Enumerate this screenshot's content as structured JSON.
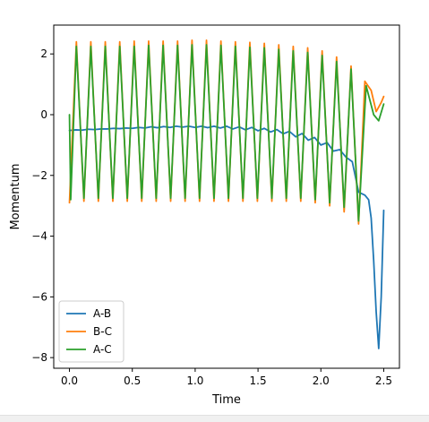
{
  "chart_data": {
    "type": "line",
    "title": "",
    "xlabel": "Time",
    "ylabel": "Momentum",
    "xlim": [
      -0.125,
      2.625
    ],
    "ylim": [
      -8.35,
      2.95
    ],
    "xticks": [
      0.0,
      0.5,
      1.0,
      1.5,
      2.0,
      2.5
    ],
    "xtick_labels": [
      "0.0",
      "0.5",
      "1.0",
      "1.5",
      "2.0",
      "2.5"
    ],
    "yticks": [
      -8,
      -6,
      -4,
      -2,
      0,
      2
    ],
    "ytick_labels": [
      "−8",
      "−6",
      "−4",
      "−2",
      "0",
      "2"
    ],
    "grid": false,
    "legend_position": "lower-left",
    "series": [
      {
        "name": "A-B",
        "color": "#1f77b4",
        "x": [
          0.0,
          0.05,
          0.1,
          0.15,
          0.2,
          0.25,
          0.3,
          0.35,
          0.4,
          0.45,
          0.5,
          0.55,
          0.6,
          0.65,
          0.7,
          0.75,
          0.8,
          0.85,
          0.9,
          0.95,
          1.0,
          1.05,
          1.1,
          1.15,
          1.2,
          1.25,
          1.3,
          1.35,
          1.4,
          1.45,
          1.5,
          1.55,
          1.6,
          1.65,
          1.7,
          1.75,
          1.8,
          1.85,
          1.9,
          1.95,
          2.0,
          2.05,
          2.1,
          2.15,
          2.2,
          2.25,
          2.3,
          2.35,
          2.38,
          2.4,
          2.42,
          2.44,
          2.46,
          2.48,
          2.5
        ],
        "y": [
          -0.52,
          -0.5,
          -0.51,
          -0.48,
          -0.49,
          -0.47,
          -0.47,
          -0.45,
          -0.46,
          -0.44,
          -0.45,
          -0.42,
          -0.44,
          -0.4,
          -0.43,
          -0.39,
          -0.42,
          -0.38,
          -0.41,
          -0.38,
          -0.42,
          -0.38,
          -0.43,
          -0.38,
          -0.44,
          -0.38,
          -0.47,
          -0.4,
          -0.5,
          -0.42,
          -0.53,
          -0.45,
          -0.57,
          -0.49,
          -0.63,
          -0.55,
          -0.73,
          -0.62,
          -0.84,
          -0.75,
          -1.0,
          -0.92,
          -1.2,
          -1.15,
          -1.4,
          -1.55,
          -2.55,
          -2.65,
          -2.8,
          -3.4,
          -4.8,
          -6.5,
          -7.7,
          -6.0,
          -3.15
        ]
      },
      {
        "name": "B-C",
        "color": "#ff7f0e",
        "x": [
          0.0,
          0.055,
          0.115,
          0.17,
          0.23,
          0.285,
          0.345,
          0.4,
          0.46,
          0.515,
          0.575,
          0.63,
          0.69,
          0.745,
          0.805,
          0.86,
          0.92,
          0.975,
          1.035,
          1.09,
          1.15,
          1.205,
          1.265,
          1.32,
          1.38,
          1.435,
          1.495,
          1.55,
          1.61,
          1.665,
          1.725,
          1.78,
          1.84,
          1.895,
          1.955,
          2.01,
          2.07,
          2.125,
          2.185,
          2.24,
          2.3,
          2.35,
          2.4,
          2.44,
          2.48,
          2.5
        ],
        "y": [
          -2.9,
          2.4,
          -2.85,
          2.4,
          -2.85,
          2.4,
          -2.85,
          2.4,
          -2.85,
          2.42,
          -2.85,
          2.42,
          -2.85,
          2.42,
          -2.85,
          2.42,
          -2.85,
          2.45,
          -2.85,
          2.45,
          -2.85,
          2.42,
          -2.85,
          2.4,
          -2.85,
          2.38,
          -2.85,
          2.35,
          -2.85,
          2.3,
          -2.85,
          2.25,
          -2.85,
          2.2,
          -2.9,
          2.1,
          -3.0,
          1.9,
          -3.2,
          1.6,
          -3.6,
          1.1,
          0.8,
          0.1,
          0.4,
          0.6
        ]
      },
      {
        "name": "A-C",
        "color": "#2ca02c",
        "x": [
          0.0,
          0.01,
          0.055,
          0.115,
          0.17,
          0.23,
          0.285,
          0.345,
          0.4,
          0.46,
          0.515,
          0.575,
          0.63,
          0.69,
          0.745,
          0.805,
          0.86,
          0.92,
          0.975,
          1.035,
          1.09,
          1.15,
          1.205,
          1.265,
          1.32,
          1.38,
          1.435,
          1.495,
          1.55,
          1.61,
          1.665,
          1.725,
          1.78,
          1.84,
          1.895,
          1.955,
          2.01,
          2.07,
          2.125,
          2.185,
          2.24,
          2.3,
          2.36,
          2.42,
          2.46,
          2.5
        ],
        "y": [
          0.0,
          -2.8,
          2.25,
          -2.75,
          2.25,
          -2.75,
          2.25,
          -2.75,
          2.25,
          -2.75,
          2.25,
          -2.75,
          2.28,
          -2.75,
          2.28,
          -2.75,
          2.28,
          -2.75,
          2.3,
          -2.75,
          2.3,
          -2.75,
          2.28,
          -2.75,
          2.25,
          -2.75,
          2.22,
          -2.75,
          2.2,
          -2.75,
          2.15,
          -2.75,
          2.1,
          -2.75,
          2.05,
          -2.8,
          1.95,
          -2.9,
          1.75,
          -3.05,
          1.5,
          -3.5,
          0.95,
          0.0,
          -0.2,
          0.35
        ]
      }
    ]
  }
}
